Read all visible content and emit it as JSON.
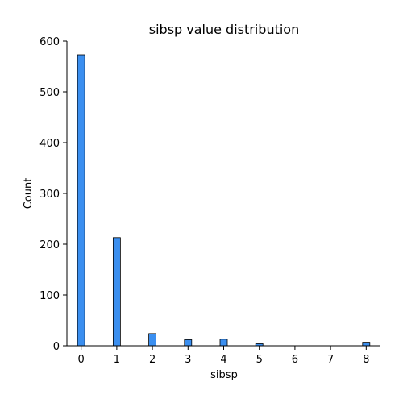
{
  "chart_data": {
    "type": "bar",
    "title": "sibsp value distribution",
    "xlabel": "sibsp",
    "ylabel": "Count",
    "x": [
      0,
      1,
      2,
      3,
      4,
      5,
      8
    ],
    "values": [
      573,
      213,
      24,
      12,
      13,
      4,
      7
    ],
    "xticks": [
      0,
      1,
      2,
      3,
      4,
      5,
      6,
      7,
      8
    ],
    "yticks": [
      0,
      100,
      200,
      300,
      400,
      500,
      600
    ],
    "xlim": [
      -0.4,
      8.4
    ],
    "ylim": [
      0,
      600
    ],
    "grid": false,
    "bar_color": "#3b8ff0"
  }
}
